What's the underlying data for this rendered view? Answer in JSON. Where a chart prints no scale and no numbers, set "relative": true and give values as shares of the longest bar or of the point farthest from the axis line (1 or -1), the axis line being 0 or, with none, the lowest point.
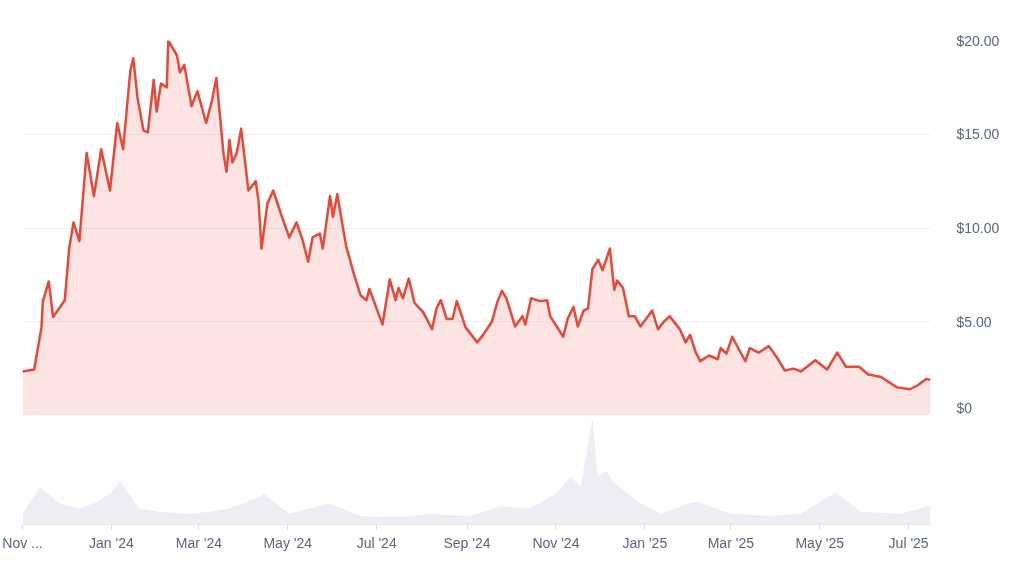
{
  "chart_data": [
    {
      "type": "area",
      "xlim": [
        "2023-11-01",
        "2025-07-16"
      ],
      "ylim": [
        0,
        20
      ],
      "tick_labels": "y",
      "grid": "y",
      "yticks": [
        {
          "value": 0,
          "label": "$0"
        },
        {
          "value": 5,
          "label": "$5.00"
        },
        {
          "value": 10,
          "label": "$10.00"
        },
        {
          "value": 15,
          "label": "$15.00"
        },
        {
          "value": 20,
          "label": "$20.00"
        }
      ],
      "x": [
        "2023-11-01",
        "2023-11-09",
        "2023-11-14",
        "2023-11-15",
        "2023-11-19",
        "2023-11-22",
        "2023-11-30",
        "2023-12-03",
        "2023-12-06",
        "2023-12-10",
        "2023-12-15",
        "2023-12-20",
        "2023-12-25",
        "2023-12-31",
        "2024-01-05",
        "2024-01-09",
        "2024-01-14",
        "2024-01-16",
        "2024-01-19",
        "2024-01-23",
        "2024-01-26",
        "2024-01-30",
        "2024-02-01",
        "2024-02-04",
        "2024-02-08",
        "2024-02-09",
        "2024-02-15",
        "2024-02-17",
        "2024-02-20",
        "2024-02-25",
        "2024-02-29",
        "2024-03-06",
        "2024-03-10",
        "2024-03-13",
        "2024-03-18",
        "2024-03-20",
        "2024-03-22",
        "2024-03-24",
        "2024-03-27",
        "2024-03-30",
        "2024-04-04",
        "2024-04-09",
        "2024-04-11",
        "2024-04-13",
        "2024-04-17",
        "2024-04-21",
        "2024-04-27",
        "2024-05-02",
        "2024-05-07",
        "2024-05-11",
        "2024-05-15",
        "2024-05-18",
        "2024-05-23",
        "2024-05-25",
        "2024-05-30",
        "2024-06-01",
        "2024-06-04",
        "2024-06-07",
        "2024-06-10",
        "2024-06-15",
        "2024-06-20",
        "2024-06-24",
        "2024-06-26",
        "2024-07-05",
        "2024-07-10",
        "2024-07-14",
        "2024-07-16",
        "2024-07-19",
        "2024-07-23",
        "2024-07-27",
        "2024-08-02",
        "2024-08-08",
        "2024-08-11",
        "2024-08-14",
        "2024-08-18",
        "2024-08-22",
        "2024-08-25",
        "2024-08-31",
        "2024-09-08",
        "2024-09-12",
        "2024-09-18",
        "2024-09-22",
        "2024-09-25",
        "2024-09-28",
        "2024-10-04",
        "2024-10-09",
        "2024-10-11",
        "2024-10-15",
        "2024-10-21",
        "2024-10-26",
        "2024-10-28",
        "2024-11-06",
        "2024-11-09",
        "2024-11-13",
        "2024-11-16",
        "2024-11-20",
        "2024-11-23",
        "2024-11-26",
        "2024-11-30",
        "2024-12-03",
        "2024-12-08",
        "2024-12-11",
        "2024-12-13",
        "2024-12-17",
        "2024-12-21",
        "2024-12-25",
        "2024-12-29",
        "2025-01-06",
        "2025-01-10",
        "2025-01-14",
        "2025-01-18",
        "2025-01-25",
        "2025-01-29",
        "2025-02-01",
        "2025-02-05",
        "2025-02-08",
        "2025-02-14",
        "2025-02-20",
        "2025-02-22",
        "2025-02-26",
        "2025-03-02",
        "2025-03-06",
        "2025-03-11",
        "2025-03-14",
        "2025-03-20",
        "2025-03-27",
        "2025-04-02",
        "2025-04-07",
        "2025-04-13",
        "2025-04-18",
        "2025-04-28",
        "2025-05-06",
        "2025-05-13",
        "2025-05-19",
        "2025-05-28",
        "2025-06-03",
        "2025-06-12",
        "2025-06-23",
        "2025-07-02",
        "2025-07-07",
        "2025-07-13",
        "2025-07-16"
      ],
      "series": [
        {
          "color": "#e8483a",
          "values": [
            2.35,
            2.45,
            4.7,
            6.1,
            7.15,
            5.25,
            6.15,
            8.9,
            10.3,
            9.3,
            14.0,
            11.7,
            14.2,
            12.0,
            15.6,
            14.2,
            18.4,
            19.05,
            16.9,
            15.2,
            15.1,
            17.9,
            16.2,
            17.7,
            17.5,
            20.0,
            19.2,
            18.3,
            18.7,
            16.5,
            17.3,
            15.6,
            16.8,
            18.0,
            13.9,
            13.0,
            14.7,
            13.5,
            14.0,
            15.3,
            12.0,
            12.5,
            11.4,
            8.9,
            11.3,
            12.0,
            10.6,
            9.5,
            10.3,
            9.4,
            8.2,
            9.5,
            9.7,
            8.9,
            11.7,
            10.6,
            11.8,
            10.4,
            9.05,
            7.65,
            6.4,
            6.15,
            6.75,
            4.85,
            7.25,
            6.15,
            6.8,
            6.25,
            7.3,
            6.0,
            5.5,
            4.6,
            5.7,
            6.15,
            5.15,
            5.15,
            6.1,
            4.7,
            3.9,
            4.3,
            5.0,
            6.1,
            6.65,
            6.25,
            4.75,
            5.3,
            4.85,
            6.25,
            6.1,
            6.15,
            5.3,
            4.2,
            5.15,
            5.8,
            4.75,
            5.6,
            5.7,
            7.8,
            8.3,
            7.75,
            8.9,
            6.7,
            7.2,
            6.8,
            5.3,
            5.3,
            4.75,
            5.6,
            4.6,
            5.0,
            5.3,
            4.6,
            3.9,
            4.3,
            3.35,
            2.9,
            3.2,
            3.0,
            3.6,
            3.3,
            4.2,
            3.6,
            2.9,
            3.6,
            3.35,
            3.7,
            3.05,
            2.4,
            2.5,
            2.35,
            2.95,
            2.45,
            3.35,
            2.6,
            2.6,
            2.2,
            2.05,
            1.5,
            1.4,
            1.6,
            1.95,
            1.9
          ]
        }
      ]
    },
    {
      "type": "area",
      "relative": true,
      "tick_labels": "x",
      "xlim": [
        "2023-11-01",
        "2025-07-16"
      ],
      "xticks": [
        {
          "value": "2023-11-01",
          "label": "Nov ..."
        },
        {
          "value": "2024-01-01",
          "label": "Jan '24"
        },
        {
          "value": "2024-03-01",
          "label": "Mar '24"
        },
        {
          "value": "2024-05-01",
          "label": "May '24"
        },
        {
          "value": "2024-07-01",
          "label": "Jul '24"
        },
        {
          "value": "2024-09-01",
          "label": "Sep '24"
        },
        {
          "value": "2024-11-01",
          "label": "Nov '24"
        },
        {
          "value": "2025-01-01",
          "label": "Jan '25"
        },
        {
          "value": "2025-03-01",
          "label": "Mar '25"
        },
        {
          "value": "2025-05-01",
          "label": "May '25"
        },
        {
          "value": "2025-07-01",
          "label": "Jul '25"
        }
      ],
      "x": [
        "2023-11-01",
        "2023-11-13",
        "2023-11-26",
        "2023-12-10",
        "2023-12-20",
        "2024-01-01",
        "2024-01-07",
        "2024-01-20",
        "2024-02-03",
        "2024-02-24",
        "2024-03-08",
        "2024-03-22",
        "2024-04-15",
        "2024-05-02",
        "2024-05-30",
        "2024-06-20",
        "2024-07-17",
        "2024-08-07",
        "2024-09-03",
        "2024-09-24",
        "2024-10-14",
        "2024-10-31",
        "2024-11-11",
        "2024-11-18",
        "2024-11-26",
        "2024-11-30",
        "2024-12-06",
        "2024-12-10",
        "2024-12-19",
        "2024-12-29",
        "2025-01-12",
        "2025-02-05",
        "2025-03-01",
        "2025-03-28",
        "2025-04-18",
        "2025-05-12",
        "2025-05-29",
        "2025-06-26",
        "2025-07-16"
      ],
      "series": [
        {
          "color": "#eceef3",
          "values": [
            0.1,
            0.35,
            0.2,
            0.15,
            0.2,
            0.3,
            0.4,
            0.15,
            0.12,
            0.1,
            0.12,
            0.15,
            0.28,
            0.1,
            0.2,
            0.08,
            0.07,
            0.1,
            0.08,
            0.17,
            0.15,
            0.28,
            0.45,
            0.35,
            1.0,
            0.45,
            0.5,
            0.4,
            0.3,
            0.2,
            0.1,
            0.22,
            0.1,
            0.08,
            0.1,
            0.3,
            0.12,
            0.1,
            0.18
          ]
        }
      ]
    }
  ]
}
